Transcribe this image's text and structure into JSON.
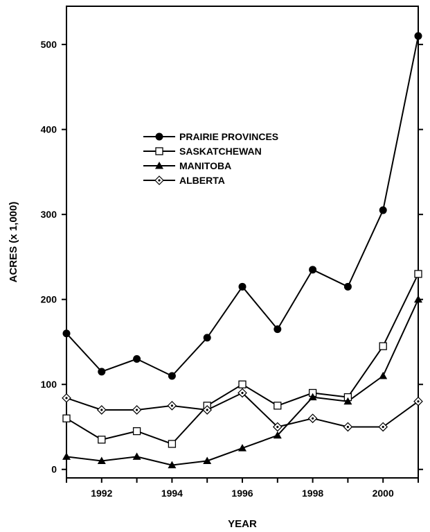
{
  "chart_data": {
    "type": "line",
    "xlabel": "YEAR",
    "ylabel": "ACRES (x 1,000)",
    "xlim": [
      1991,
      2001
    ],
    "ylim": [
      -10,
      545
    ],
    "x_ticks": [
      1992,
      1994,
      1996,
      1998,
      2000
    ],
    "y_ticks": [
      0,
      100,
      200,
      300,
      400,
      500
    ],
    "legend_position": "upper-left",
    "grid": false,
    "x": [
      1991,
      1992,
      1993,
      1994,
      1995,
      1996,
      1997,
      1998,
      1999,
      2000,
      2001
    ],
    "series": [
      {
        "name": "PRAIRIE PROVINCES",
        "marker": "filled-circle",
        "color": "#000000",
        "values": [
          160,
          115,
          130,
          110,
          155,
          215,
          165,
          235,
          215,
          305,
          510
        ]
      },
      {
        "name": "SASKATCHEWAN",
        "marker": "open-square",
        "color": "#000000",
        "values": [
          60,
          35,
          45,
          30,
          75,
          100,
          75,
          90,
          85,
          145,
          230
        ]
      },
      {
        "name": "MANITOBA",
        "marker": "filled-triangle",
        "color": "#000000",
        "values": [
          15,
          10,
          15,
          5,
          10,
          25,
          40,
          85,
          80,
          110,
          200
        ]
      },
      {
        "name": "ALBERTA",
        "marker": "dotted-diamond",
        "color": "#000000",
        "values": [
          84,
          70,
          70,
          75,
          70,
          90,
          50,
          60,
          50,
          50,
          80
        ]
      }
    ]
  }
}
